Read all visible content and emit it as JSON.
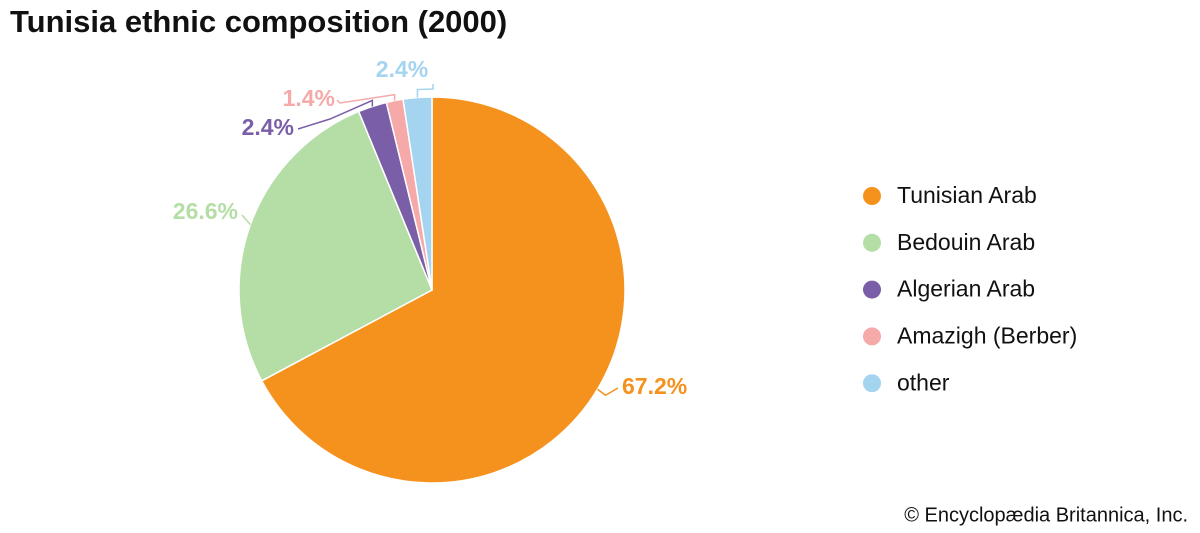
{
  "chart_data": {
    "type": "pie",
    "title": "Tunisia ethnic composition (2000)",
    "categories": [
      "Tunisian Arab",
      "Bedouin Arab",
      "Algerian Arab",
      "Amazigh (Berber)",
      "other"
    ],
    "values": [
      67.2,
      26.6,
      2.4,
      1.4,
      2.4
    ],
    "value_labels": [
      "67.2%",
      "26.6%",
      "2.4%",
      "1.4%",
      "2.4%"
    ],
    "colors": [
      "#f5921e",
      "#b5dea6",
      "#7b5ea8",
      "#f5a9a9",
      "#a4d4f0"
    ],
    "legend": "right",
    "credit": "© Encyclopædia Britannica, Inc."
  }
}
